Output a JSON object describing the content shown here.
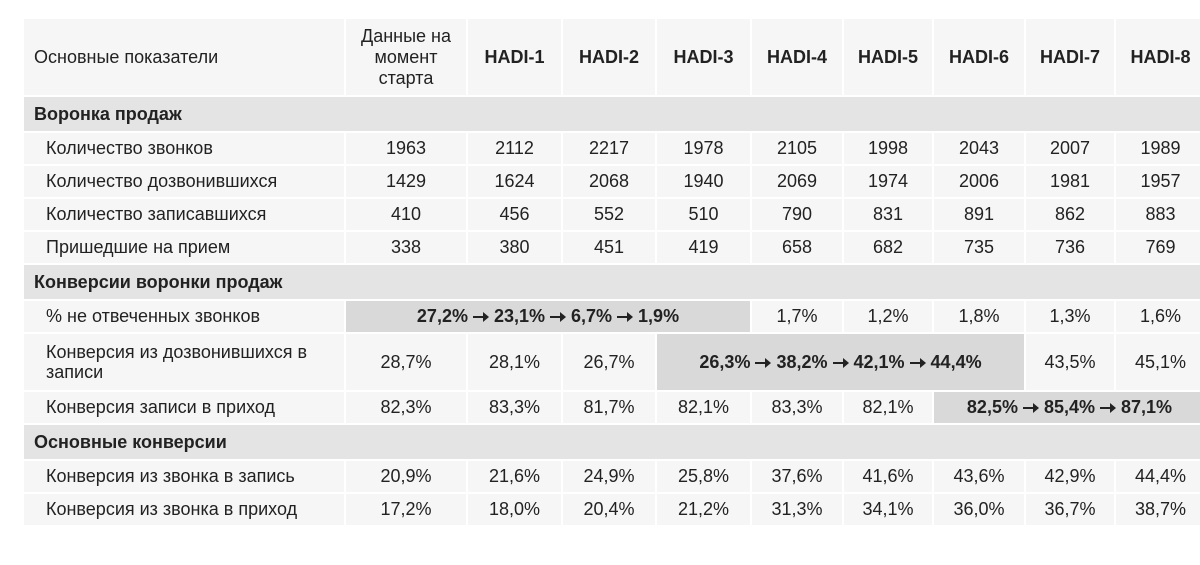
{
  "table": {
    "header": [
      "Основные показатели",
      "Данные на момент старта",
      "HADI-1",
      "HADI-2",
      "HADI-3",
      "HADI-4",
      "HADI-5",
      "HADI-6",
      "HADI-7",
      "HADI-8"
    ],
    "sections": [
      {
        "title": "Воронка продаж",
        "rows": [
          {
            "label": "Количество звонков",
            "values": [
              "1963",
              "2112",
              "2217",
              "1978",
              "2105",
              "1998",
              "2043",
              "2007",
              "1989"
            ]
          },
          {
            "label": "Количество дозвонившихся",
            "values": [
              "1429",
              "1624",
              "2068",
              "1940",
              "2069",
              "1974",
              "2006",
              "1981",
              "1957"
            ]
          },
          {
            "label": "Количество записавшихся",
            "values": [
              "410",
              "456",
              "552",
              "510",
              "790",
              "831",
              "891",
              "862",
              "883"
            ]
          },
          {
            "label": "Пришедшие на прием",
            "values": [
              "338",
              "380",
              "451",
              "419",
              "658",
              "682",
              "735",
              "736",
              "769"
            ]
          }
        ]
      },
      {
        "title": "Конверсии воронки продаж",
        "rows": [
          {
            "label": "% не отвеченных звонков",
            "values": [
              "27,2%",
              "23,1%",
              "6,7%",
              "1,9%",
              "1,7%",
              "1,2%",
              "1,8%",
              "1,3%",
              "1,6%"
            ]
          },
          {
            "label": "Конверсия из дозвонившихся в записи",
            "values": [
              "28,7%",
              "28,1%",
              "26,7%",
              "26,3%",
              "38,2%",
              "42,1%",
              "44,4%",
              "43,5%",
              "45,1%"
            ]
          },
          {
            "label": "Конверсия записи в приход",
            "values": [
              "82,3%",
              "83,3%",
              "81,7%",
              "82,1%",
              "83,3%",
              "82,1%",
              "82,5%",
              "85,4%",
              "87,1%"
            ]
          }
        ]
      },
      {
        "title": "Основные конверсии",
        "rows": [
          {
            "label": "Конверсия из звонка в запись",
            "values": [
              "20,9%",
              "21,6%",
              "24,9%",
              "25,8%",
              "37,6%",
              "41,6%",
              "43,6%",
              "42,9%",
              "44,4%"
            ]
          },
          {
            "label": "Конверсия из звонка в приход",
            "values": [
              "17,2%",
              "18,0%",
              "20,4%",
              "21,2%",
              "31,3%",
              "34,1%",
              "36,0%",
              "36,7%",
              "38,7%"
            ]
          }
        ]
      }
    ]
  }
}
